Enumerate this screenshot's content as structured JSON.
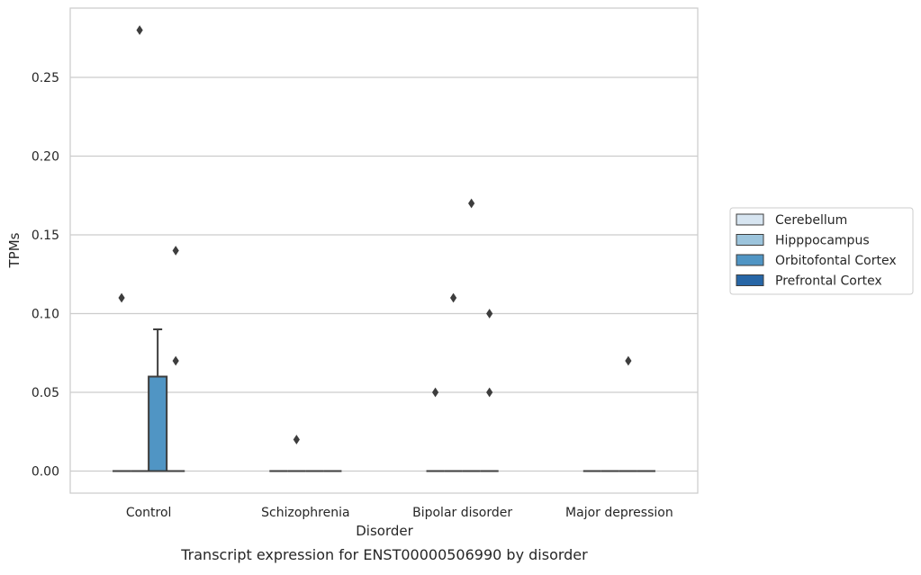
{
  "chart_data": {
    "type": "box",
    "title": "",
    "caption": "Transcript expression for ENST00000506990 by disorder",
    "xlabel": "Disorder",
    "ylabel": "TPMs",
    "ylim": [
      -0.014,
      0.294
    ],
    "yticks": [
      "0.00",
      "0.05",
      "0.10",
      "0.15",
      "0.20",
      "0.25"
    ],
    "ytick_values": [
      0,
      0.05,
      0.1,
      0.15,
      0.2,
      0.25
    ],
    "grid": "horizontal",
    "categories": [
      "Control",
      "Schizophrenia",
      "Bipolar disorder",
      "Major depression"
    ],
    "legend": {
      "placement": "center-right",
      "entries": [
        "Cerebellum",
        "Hipppocampus",
        "Orbitofontal Cortex",
        "Prefrontal Cortex"
      ]
    },
    "series": [
      {
        "name": "Cerebellum",
        "color": "#d7e5f1",
        "boxes": [
          {
            "category": "Control",
            "q1": 0,
            "median": 0,
            "q3": 0,
            "whisker_low": 0,
            "whisker_high": 0,
            "outliers": [
              0.11
            ]
          },
          {
            "category": "Schizophrenia",
            "q1": 0,
            "median": 0,
            "q3": 0,
            "whisker_low": 0,
            "whisker_high": 0,
            "outliers": []
          },
          {
            "category": "Bipolar disorder",
            "q1": 0,
            "median": 0,
            "q3": 0,
            "whisker_low": 0,
            "whisker_high": 0,
            "outliers": [
              0.05
            ]
          },
          {
            "category": "Major depression",
            "q1": 0,
            "median": 0,
            "q3": 0,
            "whisker_low": 0,
            "whisker_high": 0,
            "outliers": []
          }
        ]
      },
      {
        "name": "Hipppocampus",
        "color": "#9cc4dc",
        "boxes": [
          {
            "category": "Control",
            "q1": 0,
            "median": 0,
            "q3": 0,
            "whisker_low": 0,
            "whisker_high": 0,
            "outliers": [
              0.28
            ]
          },
          {
            "category": "Schizophrenia",
            "q1": 0,
            "median": 0,
            "q3": 0,
            "whisker_low": 0,
            "whisker_high": 0,
            "outliers": [
              0.02
            ]
          },
          {
            "category": "Bipolar disorder",
            "q1": 0,
            "median": 0,
            "q3": 0,
            "whisker_low": 0,
            "whisker_high": 0,
            "outliers": [
              0.11
            ]
          },
          {
            "category": "Major depression",
            "q1": 0,
            "median": 0,
            "q3": 0,
            "whisker_low": 0,
            "whisker_high": 0,
            "outliers": []
          }
        ]
      },
      {
        "name": "Orbitofontal Cortex",
        "color": "#5095c4",
        "boxes": [
          {
            "category": "Control",
            "q1": 0,
            "median": 0,
            "q3": 0.06,
            "whisker_low": 0,
            "whisker_high": 0.09,
            "outliers": []
          },
          {
            "category": "Schizophrenia",
            "q1": 0,
            "median": 0,
            "q3": 0,
            "whisker_low": 0,
            "whisker_high": 0,
            "outliers": []
          },
          {
            "category": "Bipolar disorder",
            "q1": 0,
            "median": 0,
            "q3": 0,
            "whisker_low": 0,
            "whisker_high": 0,
            "outliers": [
              0.17
            ]
          },
          {
            "category": "Major depression",
            "q1": 0,
            "median": 0,
            "q3": 0,
            "whisker_low": 0,
            "whisker_high": 0,
            "outliers": [
              0.07
            ]
          }
        ]
      },
      {
        "name": "Prefrontal Cortex",
        "color": "#2766a6",
        "boxes": [
          {
            "category": "Control",
            "q1": 0,
            "median": 0,
            "q3": 0,
            "whisker_low": 0,
            "whisker_high": 0,
            "outliers": [
              0.14,
              0.07
            ]
          },
          {
            "category": "Schizophrenia",
            "q1": 0,
            "median": 0,
            "q3": 0,
            "whisker_low": 0,
            "whisker_high": 0,
            "outliers": []
          },
          {
            "category": "Bipolar disorder",
            "q1": 0,
            "median": 0,
            "q3": 0,
            "whisker_low": 0,
            "whisker_high": 0,
            "outliers": [
              0.1,
              0.05
            ]
          },
          {
            "category": "Major depression",
            "q1": 0,
            "median": 0,
            "q3": 0,
            "whisker_low": 0,
            "whisker_high": 0,
            "outliers": []
          }
        ]
      }
    ]
  }
}
